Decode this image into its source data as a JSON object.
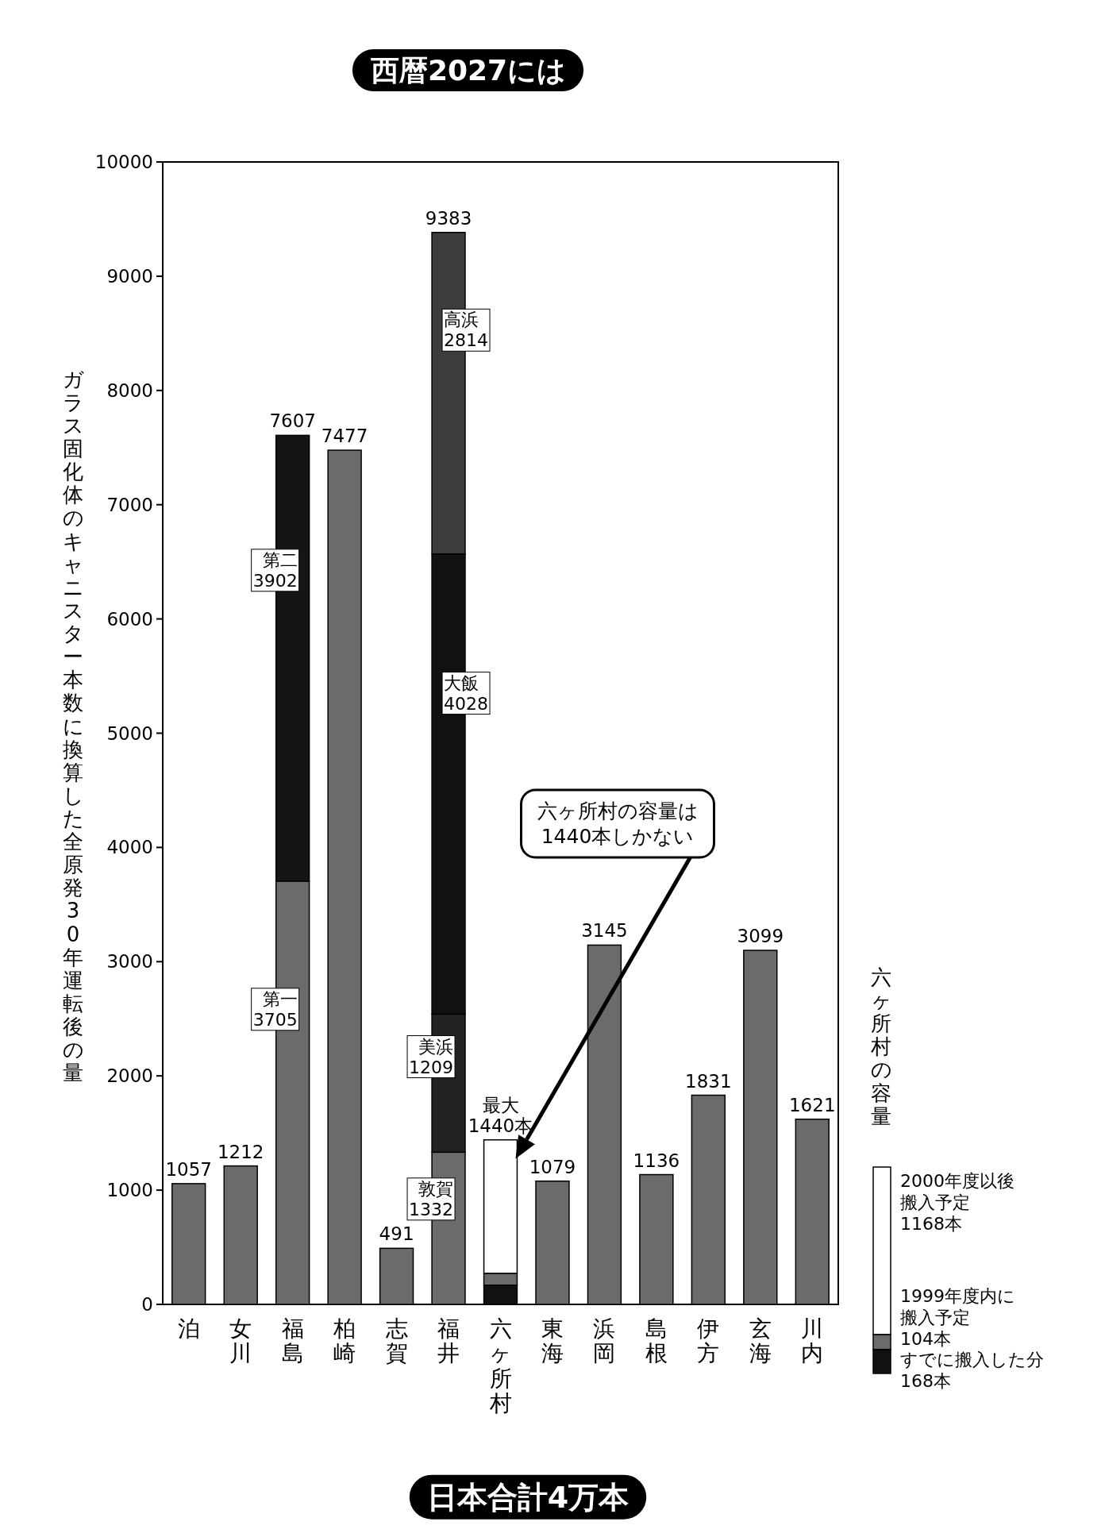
{
  "chart_data": {
    "type": "bar",
    "stacked": true,
    "title": "西暦2027には",
    "ylabel": "ガラス固化体のキャニスター本数に換算した全原発30年運転後の量",
    "legend_title": "六ヶ所村の容量",
    "categories": [
      "泊",
      "女川",
      "福島",
      "柏崎",
      "志賀",
      "福井",
      "六ヶ所村",
      "東海",
      "浜岡",
      "島根",
      "伊方",
      "玄海",
      "川内"
    ],
    "ylim": [
      0,
      10000
    ],
    "yticks": [
      0,
      1000,
      2000,
      3000,
      4000,
      5000,
      6000,
      7000,
      8000,
      9000,
      10000
    ],
    "series": [
      {
        "values": [
          1057,
          1212,
          3705,
          7477,
          491,
          1332,
          168,
          1079,
          3145,
          1136,
          1831,
          3099,
          1621
        ],
        "colors": [
          "#6b6b6b",
          "#6b6b6b",
          "#6b6b6b",
          "#6b6b6b",
          "#6b6b6b",
          "#6b6b6b",
          "#111111",
          "#6b6b6b",
          "#6b6b6b",
          "#6b6b6b",
          "#6b6b6b",
          "#6b6b6b",
          "#6b6b6b"
        ],
        "value_labels": [
          null,
          null,
          "第一3705",
          null,
          null,
          "敦賀1332",
          null,
          null,
          null,
          null,
          null,
          null,
          null
        ]
      },
      {
        "values": [
          null,
          null,
          3902,
          null,
          null,
          1209,
          104,
          null,
          null,
          null,
          null,
          null,
          null
        ],
        "colors": [
          null,
          null,
          "#151515",
          null,
          null,
          "#222222",
          "#6b6b6b",
          null,
          null,
          null,
          null,
          null,
          null
        ],
        "value_labels": [
          null,
          null,
          "第二3902",
          null,
          null,
          "美浜1209",
          null,
          null,
          null,
          null,
          null,
          null,
          null
        ]
      },
      {
        "values": [
          null,
          null,
          null,
          null,
          null,
          4028,
          1168,
          null,
          null,
          null,
          null,
          null,
          null
        ],
        "colors": [
          null,
          null,
          null,
          null,
          null,
          "#111111",
          "#ffffff",
          null,
          null,
          null,
          null,
          null,
          null
        ],
        "value_labels": [
          null,
          null,
          null,
          null,
          null,
          "大飯4028",
          null,
          null,
          null,
          null,
          null,
          null,
          null
        ]
      },
      {
        "values": [
          null,
          null,
          null,
          null,
          null,
          2814,
          null,
          null,
          null,
          null,
          null,
          null,
          null
        ],
        "colors": [
          null,
          null,
          null,
          null,
          null,
          "#3c3c3c",
          null,
          null,
          null,
          null,
          null,
          null,
          null
        ],
        "value_labels": [
          null,
          null,
          null,
          null,
          null,
          "高浜2814",
          null,
          null,
          null,
          null,
          null,
          null,
          null
        ]
      }
    ],
    "totals": [
      "1057",
      "1212",
      "7607",
      "7477",
      "491",
      "9383",
      "最大1440本",
      "1079",
      "3145",
      "1136",
      "1831",
      "3099",
      "1621"
    ],
    "annotations": [
      "日本合計4万本",
      "六ヶ所村の容量は1440本しかない",
      "2000年度以後搬入予定1168本",
      "1999年度内に搬入予定104本",
      "すでに搬入した分168本"
    ]
  }
}
